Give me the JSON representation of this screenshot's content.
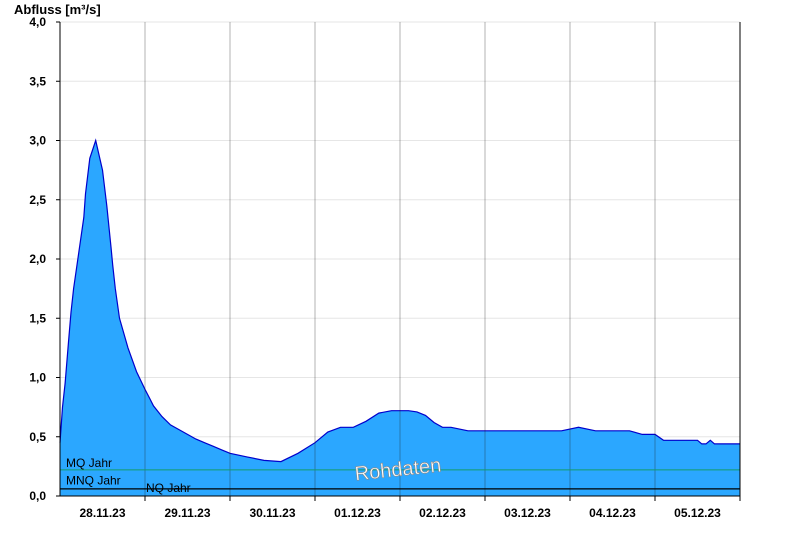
{
  "chart_data": {
    "type": "area",
    "ylabel": "Abfluss [m³/s]",
    "ylim": [
      0,
      4.0
    ],
    "yticks": [
      "0,0",
      "0,5",
      "1,0",
      "1,5",
      "2,0",
      "2,5",
      "3,0",
      "3,5",
      "4,0"
    ],
    "categories": [
      "28.11.23",
      "29.11.23",
      "30.11.23",
      "01.12.23",
      "02.12.23",
      "03.12.23",
      "04.12.23",
      "05.12.23"
    ],
    "grid": true,
    "watermark": "Rohdaten",
    "colors": {
      "fill": "#2ba7ff",
      "line": "#0000cc",
      "mq": "#139c6b",
      "nq": "#000000"
    },
    "reference_lines": [
      {
        "name": "MQ Jahr",
        "value": 0.22
      },
      {
        "name": "MNQ Jahr",
        "value": 0.07
      },
      {
        "name": "NQ Jahr",
        "value": 0.06
      }
    ],
    "series": [
      {
        "x": [
          0.0,
          0.03,
          0.06,
          0.1,
          0.13,
          0.16,
          0.2,
          0.24,
          0.28,
          0.3,
          0.35,
          0.42,
          0.5,
          0.55,
          0.6,
          0.62,
          0.65,
          0.7,
          0.8,
          0.9,
          1.0,
          1.05,
          1.1,
          1.2,
          1.3,
          1.4,
          1.5,
          1.6,
          1.7,
          1.8,
          1.9,
          2.0,
          2.2,
          2.4,
          2.6,
          2.8,
          3.0,
          3.15,
          3.3,
          3.45,
          3.6,
          3.75,
          3.9,
          4.0,
          4.1,
          4.2,
          4.3,
          4.4,
          4.5,
          4.6,
          4.8,
          5.0,
          5.2,
          5.5,
          5.9,
          6.1,
          6.3,
          6.5,
          6.7,
          6.85,
          7.0,
          7.1,
          7.2,
          7.3,
          7.4,
          7.5,
          7.55,
          7.6,
          7.65,
          7.7,
          8.0
        ],
        "y": [
          0.45,
          0.75,
          0.95,
          1.3,
          1.55,
          1.75,
          1.95,
          2.15,
          2.35,
          2.55,
          2.85,
          3.0,
          2.75,
          2.45,
          2.1,
          1.95,
          1.75,
          1.5,
          1.25,
          1.05,
          0.9,
          0.83,
          0.76,
          0.67,
          0.6,
          0.56,
          0.52,
          0.48,
          0.45,
          0.42,
          0.39,
          0.36,
          0.33,
          0.3,
          0.29,
          0.36,
          0.45,
          0.54,
          0.58,
          0.58,
          0.63,
          0.7,
          0.72,
          0.72,
          0.72,
          0.71,
          0.68,
          0.62,
          0.58,
          0.58,
          0.55,
          0.55,
          0.55,
          0.55,
          0.55,
          0.58,
          0.55,
          0.55,
          0.55,
          0.52,
          0.52,
          0.47,
          0.47,
          0.47,
          0.47,
          0.47,
          0.44,
          0.44,
          0.47,
          0.44,
          0.44
        ]
      }
    ]
  }
}
